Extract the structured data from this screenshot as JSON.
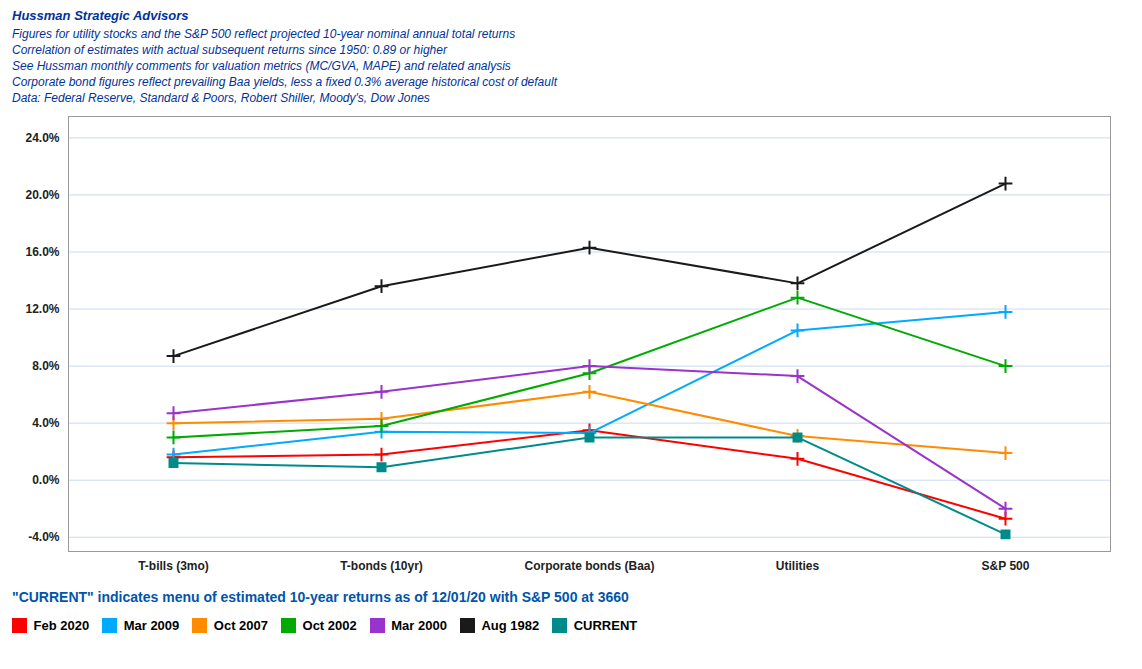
{
  "chart_data": {
    "type": "line",
    "subtitle": [
      "Hussman Strategic Advisors",
      "Figures for utility stocks and the S&P 500  reflect projected 10-year nominal annual total returns",
      "Correlation of estimates with actual subsequent returns since 1950:  0.89 or higher",
      "See Hussman monthly comments for valuation metrics (MC/GVA, MAPE) and related analysis",
      "Corporate bond figures reflect prevailing Baa yields,  less a fixed 0.3% average historical cost of default",
      "Data: Federal Reserve, Standard & Poors, Robert Shiller, Moody's, Dow Jones"
    ],
    "annotations": [
      "\"CURRENT\" indicates menu of estimated 10-year returns as of 12/01/20 with S&P 500 at 3660"
    ],
    "categories": [
      "T-bills (3mo)",
      "T-bonds (10yr)",
      "Corporate bonds (Baa)",
      "Utilities",
      "S&P 500"
    ],
    "series": [
      {
        "name": "Feb 2020",
        "color": "#FF0000",
        "marker": "plus",
        "values": [
          0.016,
          0.018,
          0.035,
          0.015,
          -0.027
        ]
      },
      {
        "name": "Mar 2009",
        "color": "#00AAFF",
        "marker": "plus",
        "values": [
          0.018,
          0.034,
          0.033,
          0.105,
          0.118
        ]
      },
      {
        "name": "Oct 2007",
        "color": "#FF8C00",
        "marker": "plus",
        "values": [
          0.04,
          0.043,
          0.062,
          0.031,
          0.019
        ]
      },
      {
        "name": "Oct 2002",
        "color": "#00AA00",
        "marker": "plus",
        "values": [
          0.03,
          0.038,
          0.075,
          0.128,
          0.08
        ]
      },
      {
        "name": "Mar 2000",
        "color": "#9933CC",
        "marker": "plus",
        "values": [
          0.047,
          0.062,
          0.08,
          0.073,
          -0.02
        ]
      },
      {
        "name": "Aug 1982",
        "color": "#1A1A1A",
        "marker": "plus",
        "values": [
          0.087,
          0.136,
          0.163,
          0.138,
          0.208
        ]
      },
      {
        "name": "CURRENT",
        "color": "#008B8B",
        "marker": "square",
        "values": [
          0.012,
          0.009,
          0.03,
          0.03,
          -0.038
        ]
      }
    ],
    "ylim": [
      -0.05,
      0.255
    ],
    "yticks": [
      {
        "value": -0.04,
        "label": "-4.0%"
      },
      {
        "value": 0.0,
        "label": "0.0%"
      },
      {
        "value": 0.04,
        "label": "4.0%"
      },
      {
        "value": 0.08,
        "label": "8.0%"
      },
      {
        "value": 0.12,
        "label": "12.0%"
      },
      {
        "value": 0.16,
        "label": "16.0%"
      },
      {
        "value": 0.2,
        "label": "20.0%"
      },
      {
        "value": 0.24,
        "label": "24.0%"
      }
    ],
    "grid": true,
    "legend": "bottom"
  }
}
